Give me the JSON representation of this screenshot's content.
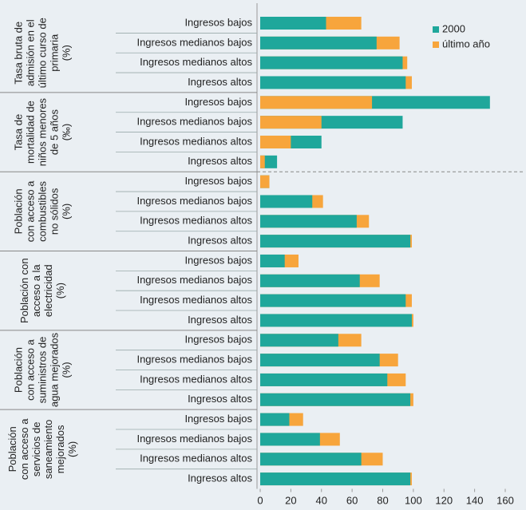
{
  "chart_data": {
    "type": "bar",
    "orientation": "horizontal",
    "overlap": true,
    "groups": [
      {
        "label": [
          "Tasa bruta de",
          "admisión en el",
          "último curso de",
          "primaria",
          "(%)"
        ]
      },
      {
        "label": [
          "Tasa de",
          "mortalidad de",
          "niños menores",
          "de 5 años",
          "(‰)"
        ]
      },
      {
        "label": [
          "Población",
          "con acceso a",
          "combustibles",
          "no sólidos",
          "(%)"
        ]
      },
      {
        "label": [
          "Población con",
          "acceso a la",
          "electricidad",
          "(%)"
        ]
      },
      {
        "label": [
          "Población",
          "con acceso a",
          "suministros de",
          "agua mejorados",
          "(%)"
        ]
      },
      {
        "label": [
          "Población",
          "con acceso a",
          "servicios de",
          "saneamiento",
          "mejorados",
          "(%)"
        ]
      }
    ],
    "categories": [
      "Ingresos bajos",
      "Ingresos medianos bajos",
      "Ingresos medianos altos",
      "Ingresos altos",
      "Ingresos bajos",
      "Ingresos medianos bajos",
      "Ingresos medianos altos",
      "Ingresos altos",
      "Ingresos bajos",
      "Ingresos medianos bajos",
      "Ingresos medianos altos",
      "Ingresos altos",
      "Ingresos bajos",
      "Ingresos medianos bajos",
      "Ingresos medianos altos",
      "Ingresos altos",
      "Ingresos bajos",
      "Ingresos medianos bajos",
      "Ingresos medianos altos",
      "Ingresos altos",
      "Ingresos bajos",
      "Ingresos medianos bajos",
      "Ingresos medianos altos",
      "Ingresos altos"
    ],
    "series": [
      {
        "name": "2000",
        "color": "#1fa79b",
        "values": [
          43,
          76,
          93,
          95,
          150,
          93,
          40,
          11,
          6,
          34,
          63,
          98,
          16,
          65,
          95,
          99,
          51,
          78,
          83,
          98,
          19,
          39,
          66,
          98
        ]
      },
      {
        "name": "último año",
        "color": "#f7a53c",
        "values": [
          66,
          91,
          96,
          99,
          73,
          40,
          20,
          3,
          6,
          41,
          71,
          99,
          25,
          78,
          99,
          100,
          66,
          90,
          95,
          100,
          28,
          52,
          80,
          99
        ]
      }
    ],
    "xlim": [
      0,
      160
    ],
    "xticks": [
      0,
      20,
      40,
      60,
      80,
      100,
      120,
      140,
      160
    ],
    "legend": "top-right"
  }
}
